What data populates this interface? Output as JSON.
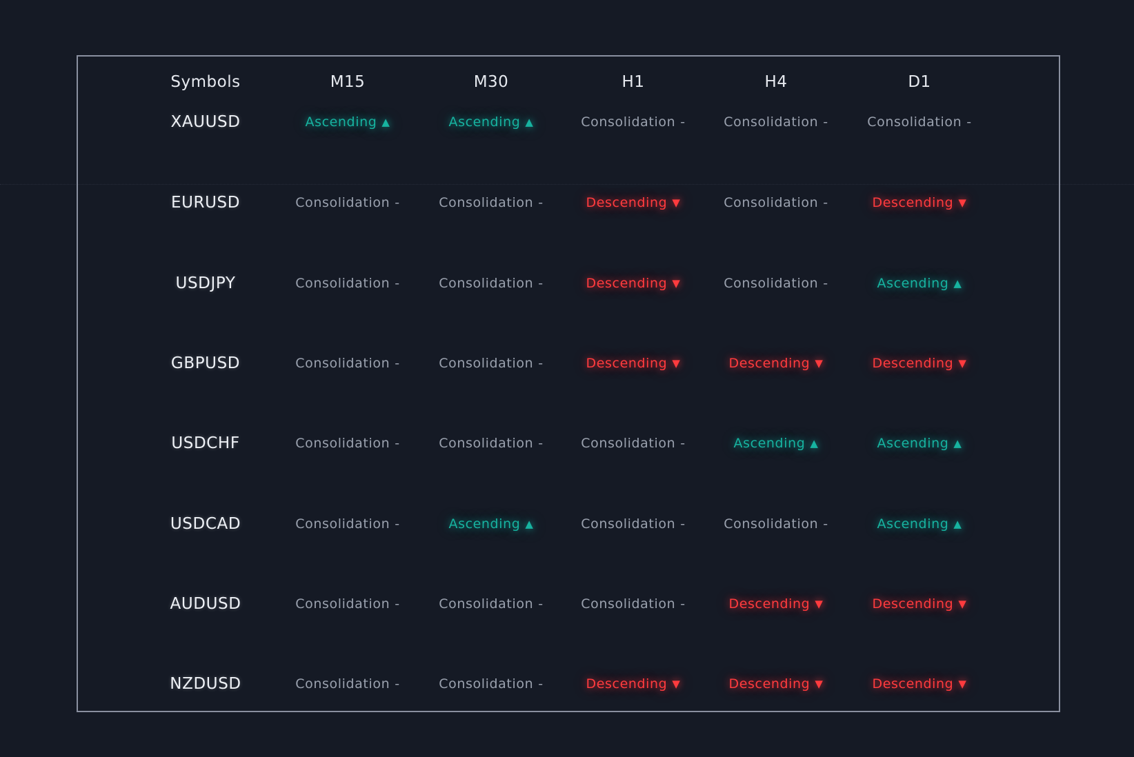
{
  "table": {
    "headers": [
      "Symbols",
      "M15",
      "M30",
      "H1",
      "H4",
      "D1"
    ],
    "rows": [
      {
        "symbol": "XAUUSD",
        "cells": [
          {
            "label": "Ascending",
            "trend": "asc"
          },
          {
            "label": "Ascending",
            "trend": "asc"
          },
          {
            "label": "Consolidation",
            "trend": "cons"
          },
          {
            "label": "Consolidation",
            "trend": "cons"
          },
          {
            "label": "Consolidation",
            "trend": "cons"
          }
        ]
      },
      {
        "symbol": "EURUSD",
        "cells": [
          {
            "label": "Consolidation",
            "trend": "cons"
          },
          {
            "label": "Consolidation",
            "trend": "cons"
          },
          {
            "label": "Descending",
            "trend": "desc"
          },
          {
            "label": "Consolidation",
            "trend": "cons"
          },
          {
            "label": "Descending",
            "trend": "desc"
          }
        ]
      },
      {
        "symbol": "USDJPY",
        "cells": [
          {
            "label": "Consolidation",
            "trend": "cons"
          },
          {
            "label": "Consolidation",
            "trend": "cons"
          },
          {
            "label": "Descending",
            "trend": "desc"
          },
          {
            "label": "Consolidation",
            "trend": "cons"
          },
          {
            "label": "Ascending",
            "trend": "asc"
          }
        ]
      },
      {
        "symbol": "GBPUSD",
        "cells": [
          {
            "label": "Consolidation",
            "trend": "cons"
          },
          {
            "label": "Consolidation",
            "trend": "cons"
          },
          {
            "label": "Descending",
            "trend": "desc"
          },
          {
            "label": "Descending",
            "trend": "desc"
          },
          {
            "label": "Descending",
            "trend": "desc"
          }
        ]
      },
      {
        "symbol": "USDCHF",
        "cells": [
          {
            "label": "Consolidation",
            "trend": "cons"
          },
          {
            "label": "Consolidation",
            "trend": "cons"
          },
          {
            "label": "Consolidation",
            "trend": "cons"
          },
          {
            "label": "Ascending",
            "trend": "asc"
          },
          {
            "label": "Ascending",
            "trend": "asc"
          }
        ]
      },
      {
        "symbol": "USDCAD",
        "cells": [
          {
            "label": "Consolidation",
            "trend": "cons"
          },
          {
            "label": "Ascending",
            "trend": "asc"
          },
          {
            "label": "Consolidation",
            "trend": "cons"
          },
          {
            "label": "Consolidation",
            "trend": "cons"
          },
          {
            "label": "Ascending",
            "trend": "asc"
          }
        ]
      },
      {
        "symbol": "AUDUSD",
        "cells": [
          {
            "label": "Consolidation",
            "trend": "cons"
          },
          {
            "label": "Consolidation",
            "trend": "cons"
          },
          {
            "label": "Consolidation",
            "trend": "cons"
          },
          {
            "label": "Descending",
            "trend": "desc"
          },
          {
            "label": "Descending",
            "trend": "desc"
          }
        ]
      },
      {
        "symbol": "NZDUSD",
        "cells": [
          {
            "label": "Consolidation",
            "trend": "cons"
          },
          {
            "label": "Consolidation",
            "trend": "cons"
          },
          {
            "label": "Descending",
            "trend": "desc"
          },
          {
            "label": "Descending",
            "trend": "desc"
          },
          {
            "label": "Descending",
            "trend": "desc"
          }
        ]
      }
    ]
  },
  "indicators": {
    "asc": {
      "glyph": "▲",
      "icon": "triangle-up-icon"
    },
    "desc": {
      "glyph": "▼",
      "icon": "triangle-down-icon"
    },
    "cons": {
      "glyph": "-",
      "icon": "dash-icon"
    }
  },
  "colors": {
    "background": "#151a25",
    "border": "#8a90a0",
    "ascending": "#17b3a0",
    "descending": "#ff3b3e",
    "consolidation": "#9aa1ae",
    "text": "#e6e9ef"
  }
}
